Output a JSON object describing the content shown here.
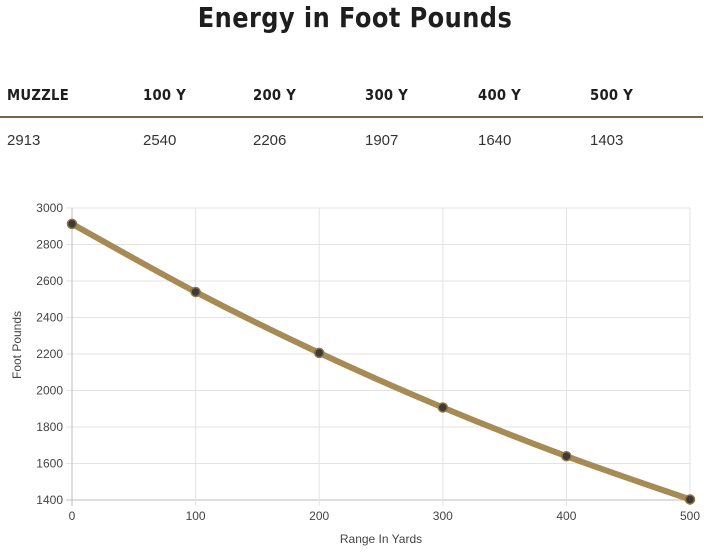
{
  "title": "Energy in Foot Pounds",
  "table": {
    "headers": [
      "MUZZLE",
      "100 Y",
      "200 Y",
      "300 Y",
      "400 Y",
      "500 Y"
    ],
    "values": [
      "2913",
      "2540",
      "2206",
      "1907",
      "1640",
      "1403"
    ]
  },
  "chart_data": {
    "type": "line",
    "x": [
      0,
      100,
      200,
      300,
      400,
      500
    ],
    "series": [
      {
        "values": [
          2913,
          2540,
          2206,
          1907,
          1640,
          1403
        ]
      }
    ],
    "xlabel": "Range In Yards",
    "ylabel": "Foot Pounds",
    "xlim": [
      0,
      500
    ],
    "ylim": [
      1400,
      3000
    ],
    "xticks": [
      0,
      100,
      200,
      300,
      400,
      500
    ],
    "yticks": [
      1400,
      1600,
      1800,
      2000,
      2200,
      2400,
      2600,
      2800,
      3000
    ],
    "grid": true,
    "line_color": "#a68b55",
    "marker_color": "#3d3a34"
  }
}
